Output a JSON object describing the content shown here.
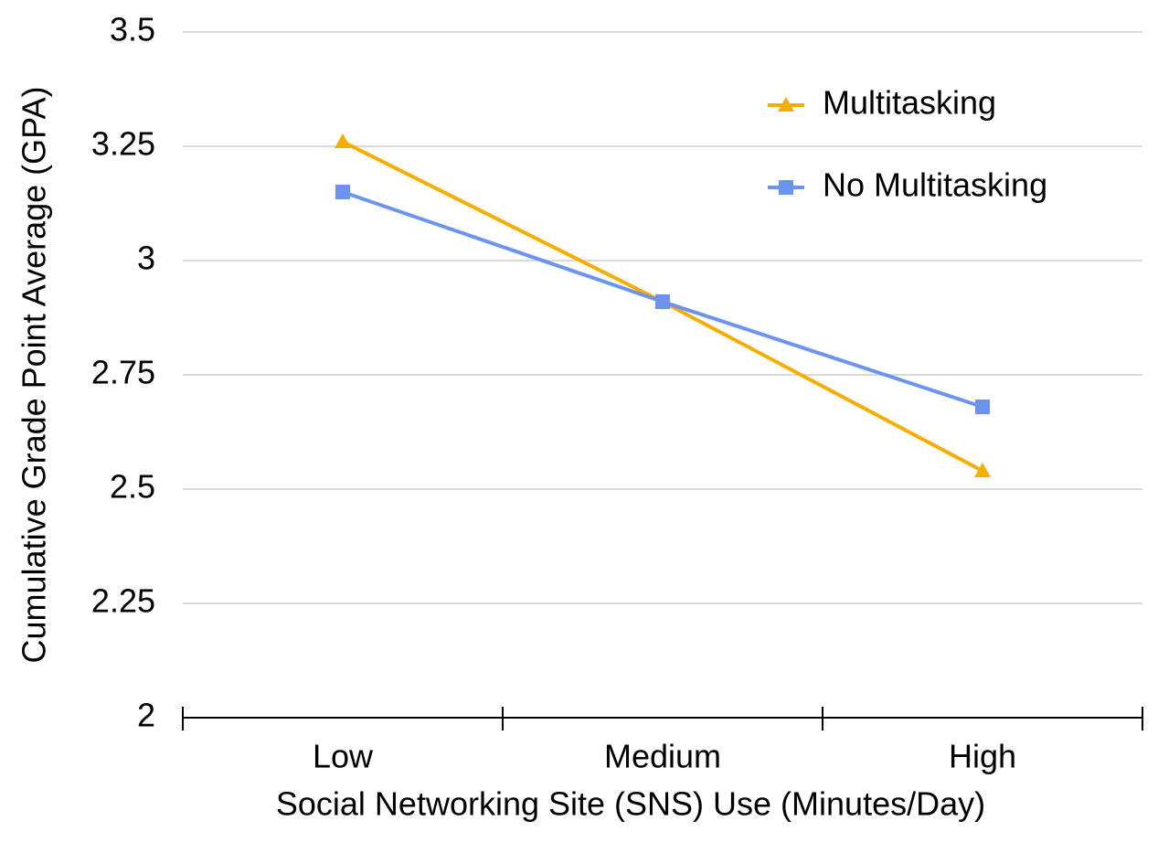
{
  "chart_data": {
    "type": "line",
    "x_label": "Social Networking Site (SNS) Use (Minutes/Day)",
    "y_label": "Cumulative Grade Point Average (GPA)",
    "categories": [
      "Low",
      "Medium",
      "High"
    ],
    "series": [
      {
        "name": "Multitasking",
        "color": "#f5ae00",
        "marker": "triangle",
        "values": [
          3.26,
          2.91,
          2.54
        ]
      },
      {
        "name": "No Multitasking",
        "color": "#6d93f0",
        "marker": "square",
        "values": [
          3.15,
          2.91,
          2.68
        ]
      }
    ],
    "ylim": [
      2,
      3.5
    ],
    "yticks": [
      2,
      2.25,
      2.5,
      2.75,
      3,
      3.25,
      3.5
    ],
    "grid": true,
    "legend": "upper right"
  }
}
